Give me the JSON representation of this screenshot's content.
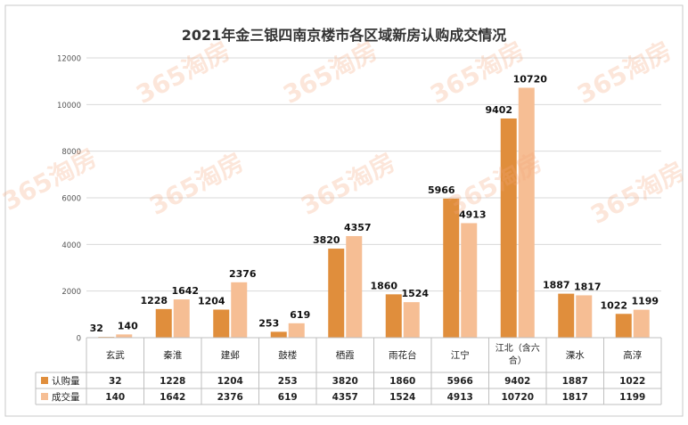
{
  "chart_data": {
    "type": "bar",
    "title": "2021年金三银四南京楼市各区域新房认购成交情况",
    "categories": [
      "玄武",
      "秦淮",
      "建邺",
      "鼓楼",
      "栖霞",
      "雨花台",
      "江宁",
      "江北（含六合）",
      "溧水",
      "高淳"
    ],
    "series": [
      {
        "name": "认购量",
        "color": "#E08E3C",
        "values": [
          32,
          1228,
          1204,
          253,
          3820,
          1860,
          5966,
          9402,
          1887,
          1022
        ]
      },
      {
        "name": "成交量",
        "color": "#F6BE94",
        "values": [
          140,
          1642,
          2376,
          619,
          4357,
          1524,
          4913,
          10720,
          1817,
          1199
        ]
      }
    ],
    "ylim": [
      0,
      12000
    ],
    "yticks": [
      0,
      2000,
      4000,
      6000,
      8000,
      10000,
      12000
    ],
    "grid": true,
    "legend": "data-table",
    "watermark": "365淘房"
  }
}
